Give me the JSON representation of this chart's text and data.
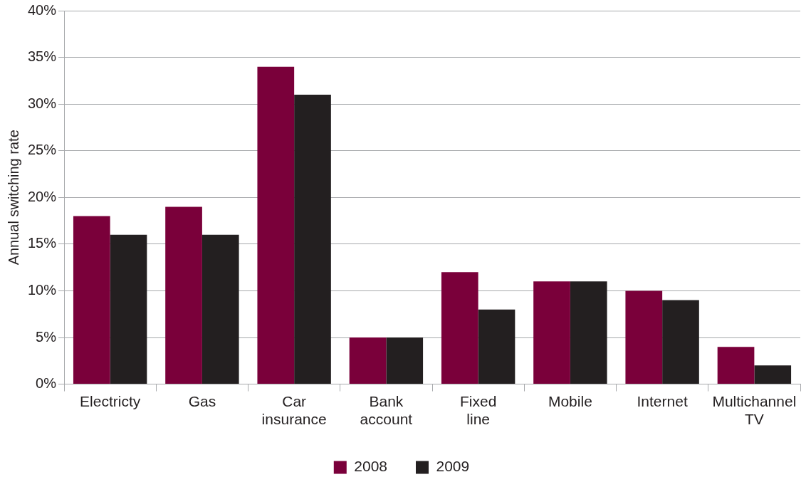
{
  "chart_data": {
    "type": "bar",
    "ylabel": "Annual switching rate",
    "categories": [
      "Electricty",
      "Gas",
      "Car insurance",
      "Bank account",
      "Fixed line",
      "Mobile",
      "Internet",
      "Multichannel TV"
    ],
    "series": [
      {
        "name": "2008",
        "color": "#7a003a",
        "values": [
          18,
          19,
          34,
          5,
          12,
          11,
          10,
          4
        ]
      },
      {
        "name": "2009",
        "color": "#231f20",
        "values": [
          16,
          16,
          31,
          5,
          8,
          11,
          9,
          2
        ]
      }
    ],
    "ylim": [
      0,
      40
    ],
    "yticks": [
      {
        "value": 0,
        "label": "0%"
      },
      {
        "value": 5,
        "label": "5%"
      },
      {
        "value": 10,
        "label": "10%"
      },
      {
        "value": 15,
        "label": "15%"
      },
      {
        "value": 20,
        "label": "20%"
      },
      {
        "value": 25,
        "label": "25%"
      },
      {
        "value": 30,
        "label": "30%"
      },
      {
        "value": 35,
        "label": "35%"
      },
      {
        "value": 40,
        "label": "40%"
      }
    ],
    "grid": "y",
    "legend": "bottom"
  }
}
